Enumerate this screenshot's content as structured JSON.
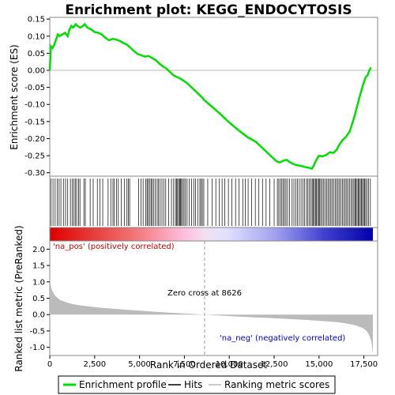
{
  "chart_data": {
    "type": "line",
    "title": "Enrichment plot: KEGG_ENDOCYTOSIS",
    "xlabel": "Rank in Ordered Dataset",
    "ylabel_top": "Enrichment score (ES)",
    "ylabel_bottom": "Ranked list metric (PreRanked)",
    "x_range": [
      0,
      18000
    ],
    "x_ticks": [
      0,
      2500,
      5000,
      7500,
      10000,
      12500,
      15000,
      17500
    ],
    "x_tick_labels": [
      "0",
      "2,500",
      "5,000",
      "7,500",
      "10,000",
      "12,500",
      "15,000",
      "17,500"
    ],
    "top_ylim": [
      -0.31,
      0.155
    ],
    "top_yticks": [
      0.15,
      0.1,
      0.05,
      0.0,
      -0.05,
      -0.1,
      -0.15,
      -0.2,
      -0.25,
      -0.3
    ],
    "top_ytick_labels": [
      "0.15",
      "0.10",
      "0.05",
      "0.00",
      "-0.05",
      "-0.10",
      "-0.15",
      "-0.20",
      "-0.25",
      "-0.30"
    ],
    "bottom_ylim": [
      -1.25,
      2.25
    ],
    "bottom_yticks": [
      2.0,
      1.5,
      1.0,
      0.5,
      0.0,
      -0.5,
      -1.0
    ],
    "bottom_ytick_labels": [
      "2.0",
      "1.5",
      "1.0",
      "0.5",
      "0.0",
      "-0.5",
      "-1.0"
    ],
    "es_curve": {
      "name": "Enrichment profile",
      "color": "#00dd00",
      "x": [
        0,
        60,
        150,
        250,
        350,
        450,
        550,
        700,
        850,
        1000,
        1100,
        1200,
        1300,
        1450,
        1550,
        1700,
        1850,
        1950,
        2100,
        2300,
        2500,
        2700,
        2900,
        3100,
        3300,
        3500,
        3700,
        3900,
        4100,
        4300,
        4500,
        4700,
        4900,
        5100,
        5300,
        5500,
        5700,
        5900,
        6100,
        6300,
        6500,
        6700,
        6900,
        7100,
        7300,
        7500,
        7700,
        7900,
        8100,
        8300,
        8500,
        8626,
        9000,
        9500,
        10000,
        10500,
        11000,
        11500,
        12000,
        12300,
        12600,
        12800,
        13000,
        13200,
        13400,
        13600,
        13800,
        14000,
        14200,
        14400,
        14600,
        14700,
        14800,
        14900,
        15000,
        15200,
        15400,
        15600,
        15800,
        16000,
        16100,
        16300,
        16500,
        16700,
        16800,
        16900,
        17000,
        17100,
        17200,
        17300,
        17400,
        17500,
        17600,
        17700,
        17800,
        17900
      ],
      "y": [
        0.0,
        0.07,
        0.065,
        0.075,
        0.09,
        0.105,
        0.1,
        0.105,
        0.11,
        0.1,
        0.12,
        0.13,
        0.125,
        0.135,
        0.13,
        0.125,
        0.13,
        0.135,
        0.125,
        0.12,
        0.112,
        0.11,
        0.105,
        0.095,
        0.088,
        0.092,
        0.09,
        0.086,
        0.08,
        0.075,
        0.066,
        0.056,
        0.048,
        0.044,
        0.04,
        0.042,
        0.036,
        0.03,
        0.02,
        0.012,
        0.005,
        -0.005,
        -0.015,
        -0.02,
        -0.025,
        -0.032,
        -0.04,
        -0.05,
        -0.06,
        -0.07,
        -0.08,
        -0.088,
        -0.105,
        -0.128,
        -0.153,
        -0.175,
        -0.195,
        -0.21,
        -0.235,
        -0.25,
        -0.265,
        -0.27,
        -0.265,
        -0.262,
        -0.27,
        -0.275,
        -0.278,
        -0.28,
        -0.283,
        -0.285,
        -0.288,
        -0.28,
        -0.268,
        -0.258,
        -0.25,
        -0.252,
        -0.248,
        -0.24,
        -0.242,
        -0.232,
        -0.22,
        -0.205,
        -0.195,
        -0.18,
        -0.165,
        -0.148,
        -0.13,
        -0.11,
        -0.09,
        -0.07,
        -0.052,
        -0.035,
        -0.02,
        -0.015,
        0.0,
        0.008
      ]
    },
    "hits": {
      "name": "Hits",
      "x": [
        70,
        180,
        300,
        420,
        520,
        620,
        760,
        880,
        1000,
        1150,
        1250,
        1350,
        1420,
        1500,
        1600,
        1680,
        1900,
        1980,
        2250,
        2420,
        2650,
        2800,
        2950,
        3250,
        3400,
        3520,
        3600,
        3720,
        3820,
        3980,
        4150,
        4300,
        4380,
        4450,
        4950,
        5080,
        5200,
        5350,
        5420,
        5480,
        5560,
        5640,
        5700,
        5780,
        5880,
        5980,
        6060,
        6150,
        6250,
        6350,
        6460,
        6620,
        6780,
        6900,
        7000,
        7060,
        7120,
        7180,
        7240,
        7290,
        7340,
        7400,
        7480,
        7560,
        7650,
        7760,
        7900,
        8020,
        8120,
        8240,
        8360,
        8430,
        8500,
        8580,
        8800,
        9050,
        9250,
        9450,
        9600,
        9750,
        9950,
        10150,
        10350,
        10550,
        10750,
        10900,
        11050,
        11250,
        11450,
        11650,
        11850,
        12050,
        12250,
        12500,
        12680,
        12760,
        12850,
        12930,
        13010,
        13080,
        13160,
        13250,
        13350,
        13500,
        13600,
        13700,
        13800,
        13900,
        14000,
        14100,
        14200,
        14300,
        14380,
        14460,
        14540,
        14620,
        14680,
        14740,
        14800,
        14860,
        14920,
        14980,
        15040,
        15100,
        15180,
        15260,
        15340,
        15420,
        15500,
        15580,
        15660,
        15740,
        15820,
        15900,
        15980,
        16060,
        16140,
        16220,
        16300,
        16380,
        16460,
        16540,
        16620,
        16700,
        16780,
        16860,
        16940,
        17000,
        17060,
        17120,
        17180,
        17240,
        17300,
        17360,
        17420,
        17480,
        17540,
        17600,
        17680,
        17760,
        17860
      ]
    },
    "metric": {
      "name": "Ranking metric scores",
      "x": [
        0,
        20,
        60,
        120,
        200,
        300,
        450,
        600,
        800,
        1000,
        1300,
        1600,
        2000,
        2500,
        3000,
        3500,
        4000,
        5000,
        6000,
        7000,
        8000,
        8626,
        9500,
        10500,
        11500,
        12500,
        13500,
        14500,
        15000,
        15500,
        16000,
        16500,
        16800,
        17100,
        17300,
        17500,
        17650,
        17750,
        17850,
        17920,
        17970,
        18000
      ],
      "y": [
        1.1,
        1.02,
        0.88,
        0.76,
        0.66,
        0.58,
        0.5,
        0.44,
        0.4,
        0.36,
        0.32,
        0.29,
        0.26,
        0.23,
        0.2,
        0.18,
        0.16,
        0.12,
        0.08,
        0.05,
        0.02,
        0.0,
        -0.03,
        -0.06,
        -0.09,
        -0.11,
        -0.14,
        -0.17,
        -0.19,
        -0.21,
        -0.23,
        -0.27,
        -0.3,
        -0.34,
        -0.38,
        -0.43,
        -0.5,
        -0.58,
        -0.7,
        -0.85,
        -1.05,
        -1.2
      ]
    },
    "zero_cross": {
      "x": 8626,
      "label": "Zero cross at 8626"
    },
    "annotations": {
      "pos_label": "'na_pos' (positively correlated)",
      "neg_label": "'na_neg' (negatively correlated)",
      "pos_color": "#cc0000",
      "neg_color": "#0000cc"
    },
    "legend": [
      {
        "name": "Enrichment profile",
        "color": "#00dd00",
        "style": "thick-line"
      },
      {
        "name": "Hits",
        "color": "#000000",
        "style": "thin-line"
      },
      {
        "name": "Ranking metric scores",
        "color": "#bbbbbb",
        "style": "thin-line"
      }
    ],
    "legend_position": "bottom"
  }
}
